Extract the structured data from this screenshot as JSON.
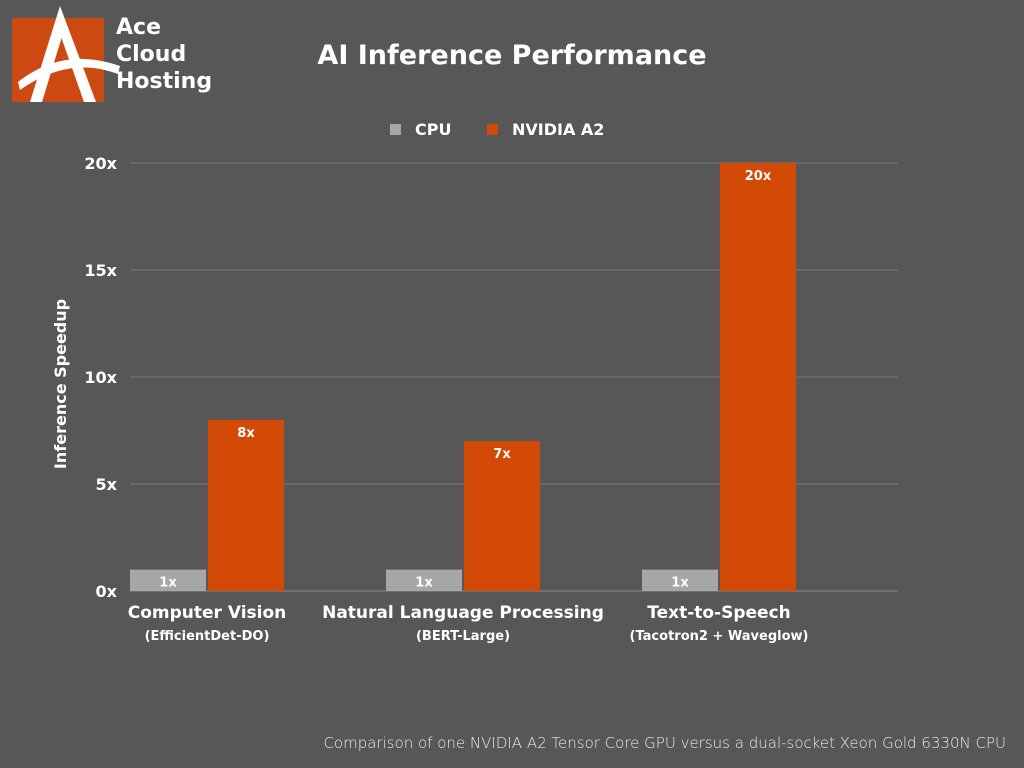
{
  "logo": {
    "line1": "Ace",
    "line2": "Cloud",
    "line3": "Hosting"
  },
  "colors": {
    "background": "#575757",
    "cpu": "#a6a6a6",
    "gpu": "#d34a06",
    "grid": "#7a7a7a",
    "brand": "#cc4a12"
  },
  "footnote": "Comparison of one NVIDIA A2 Tensor Core GPU versus a dual-socket Xeon Gold 6330N CPU",
  "chart_data": {
    "type": "bar",
    "title": "AI Inference Performance",
    "ylabel": "Inference Speedup",
    "xlabel": "",
    "ylim": [
      0,
      20
    ],
    "yticks": [
      0,
      5,
      10,
      15,
      20
    ],
    "ytick_labels": [
      "0x",
      "5x",
      "10x",
      "15x",
      "20x"
    ],
    "grid": true,
    "legend_position": "top-center",
    "categories": [
      "Computer Vision",
      "Natural Language Processing",
      "Text-to-Speech"
    ],
    "category_sublabels": [
      "(EfficientDet-DO)",
      "(BERT-Large)",
      "(Tacotron2 + Waveglow)"
    ],
    "series": [
      {
        "name": "CPU",
        "values": [
          1,
          1,
          1
        ],
        "labels": [
          "1x",
          "1x",
          "1x"
        ]
      },
      {
        "name": "NVIDIA A2",
        "values": [
          8,
          7,
          20
        ],
        "labels": [
          "8x",
          "7x",
          "20x"
        ]
      }
    ]
  }
}
